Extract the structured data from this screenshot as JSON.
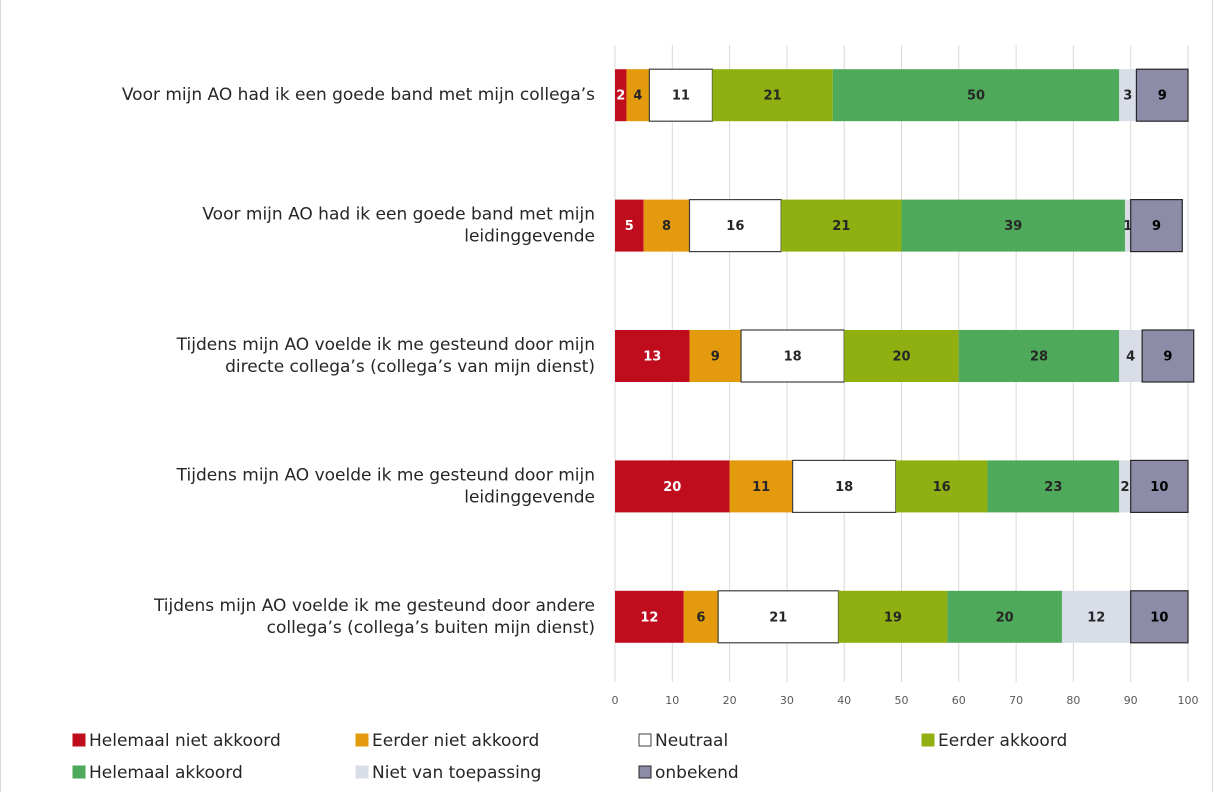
{
  "chart_data": {
    "type": "stacked-barh",
    "categories": [
      [
        "Voor mijn AO had ik een goede band met mijn collega’s"
      ],
      [
        "Voor mijn AO had ik een goede band met mijn",
        "leidinggevende"
      ],
      [
        "Tijdens mijn AO voelde ik me gesteund door mijn",
        "directe collega’s (collega’s van mijn dienst)"
      ],
      [
        "Tijdens mijn AO voelde ik me gesteund door mijn",
        "leidinggevende"
      ],
      [
        "Tijdens mijn AO voelde ik me gesteund door andere",
        "collega’s (collega’s buiten mijn dienst)"
      ]
    ],
    "series": [
      {
        "name": "Helemaal niet akkoord",
        "color": "#c00d1e",
        "label_color": "#ffffff",
        "values": [
          2,
          5,
          13,
          20,
          12
        ]
      },
      {
        "name": "Eerder niet akkoord",
        "color": "#e39a0d",
        "label_color": "#262626",
        "values": [
          4,
          8,
          9,
          11,
          6
        ]
      },
      {
        "name": "Neutraal",
        "color": "#ffffff",
        "edge": "#404040",
        "label_color": "#262626",
        "values": [
          11,
          16,
          18,
          18,
          21
        ]
      },
      {
        "name": "Eerder akkoord",
        "color": "#8fb010",
        "label_color": "#262626",
        "values": [
          21,
          21,
          20,
          16,
          19
        ]
      },
      {
        "name": "Helemaal akkoord",
        "color": "#4ea95a",
        "label_color": "#262626",
        "values": [
          50,
          39,
          28,
          23,
          20
        ]
      },
      {
        "name": "Niet van toepassing",
        "color": "#d9dde8",
        "label_color": "#262626",
        "values": [
          3,
          1,
          4,
          2,
          12
        ]
      },
      {
        "name": "onbekend",
        "color": "#8c8ca8",
        "edge": "#262626",
        "label_color": "#000000",
        "values": [
          9,
          9,
          9,
          10,
          10
        ]
      }
    ],
    "xlim": [
      0,
      100
    ],
    "xticks": [
      0,
      10,
      20,
      30,
      40,
      50,
      60,
      70,
      80,
      90,
      100
    ],
    "grid": true
  }
}
